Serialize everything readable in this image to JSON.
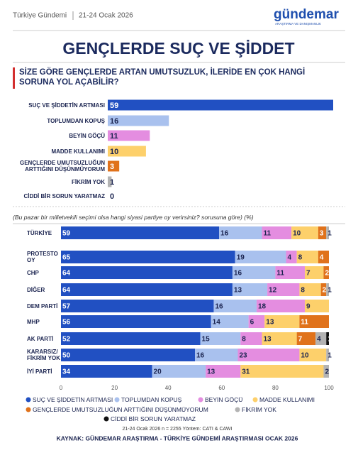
{
  "header": {
    "source_name": "Türkiye Gündemi",
    "date": "21-24 Ocak 2026",
    "logo": "gündemar",
    "logo_sub": "ARAŞTIRMA VE DANIŞMANLIK",
    "title": "GENÇLERDE SUÇ VE ŞİDDET"
  },
  "chart_data": [
    {
      "type": "hbar",
      "title": "SİZE GÖRE GENÇLERDE ARTAN UMUTSUZLUK, İLERİDE EN ÇOK HANGİ SORUNA YOL AÇABİLİR?",
      "categories": [
        "SUÇ VE ŞİDDETİN ARTMASI",
        "TOPLUMDAN KOPUŞ",
        "BEYİN GÖÇÜ",
        "MADDE KULLANIMI",
        "GENÇLERDE UMUTSUZLUĞUN ARTTIĞINI DÜŞÜNMÜYORUM",
        "FİKRİM YOK",
        "CİDDİ BİR SORUN YARATMAZ"
      ],
      "values": [
        59,
        16,
        11,
        10,
        3,
        1,
        0
      ],
      "colors": [
        "#2150c2",
        "#a9c1ee",
        "#e48de0",
        "#fdd06b",
        "#e0721b",
        "#b3b3b3",
        "#111111"
      ]
    },
    {
      "type": "stacked_hbar",
      "subtitle": "(Bu pazar bir milletvekili seçimi olsa hangi siyasi partiye oy verirsiniz? sorusuna göre) (%)",
      "categories": [
        "TÜRKİYE",
        "PROTESTO OY",
        "CHP",
        "DİĞER",
        "DEM PARTİ",
        "MHP",
        "AK PARTİ",
        "KARARSIZ/ FİKRİM YOK",
        "İYİ PARTİ"
      ],
      "xlim": [
        0,
        100
      ],
      "xticks": [
        0,
        20,
        40,
        60,
        80,
        100
      ],
      "series": [
        {
          "name": "SUÇ VE ŞİDDETİN ARTMASI",
          "color": "#2150c2",
          "values": [
            59,
            65,
            64,
            64,
            57,
            56,
            52,
            50,
            34
          ]
        },
        {
          "name": "TOPLUMDAN KOPUŞ",
          "color": "#a9c1ee",
          "values": [
            16,
            19,
            16,
            13,
            16,
            14,
            15,
            16,
            20
          ]
        },
        {
          "name": "BEYİN GÖÇÜ",
          "color": "#e48de0",
          "values": [
            11,
            4,
            11,
            12,
            18,
            6,
            8,
            23,
            13
          ]
        },
        {
          "name": "MADDE KULLANIMI",
          "color": "#fdd06b",
          "values": [
            10,
            8,
            7,
            8,
            9,
            13,
            13,
            10,
            31
          ]
        },
        {
          "name": "GENÇLERDE UMUTSUZLUĞUN ARTTIĞINI DÜŞÜNMÜYORUM",
          "color": "#e0721b",
          "values": [
            3,
            4,
            2,
            2,
            0,
            11,
            7,
            0,
            0
          ]
        },
        {
          "name": "FİKRİM YOK",
          "color": "#b3b3b3",
          "values": [
            1,
            0,
            0,
            1,
            0,
            0,
            4,
            1,
            2
          ]
        },
        {
          "name": "CİDDİ BİR SORUN YARATMAZ",
          "color": "#111111",
          "values": [
            0,
            0,
            0,
            0,
            0,
            0,
            1,
            0,
            0
          ]
        }
      ]
    }
  ],
  "footer": {
    "note": "21-24 Ocak 2026 n = 2255 Yöntem: CATI & CAWI",
    "source": "KAYNAK: GÜNDEMAR ARAŞTIRMA - TÜRKİYE GÜNDEMİ ARAŞTIRMASI OCAK 2026"
  }
}
